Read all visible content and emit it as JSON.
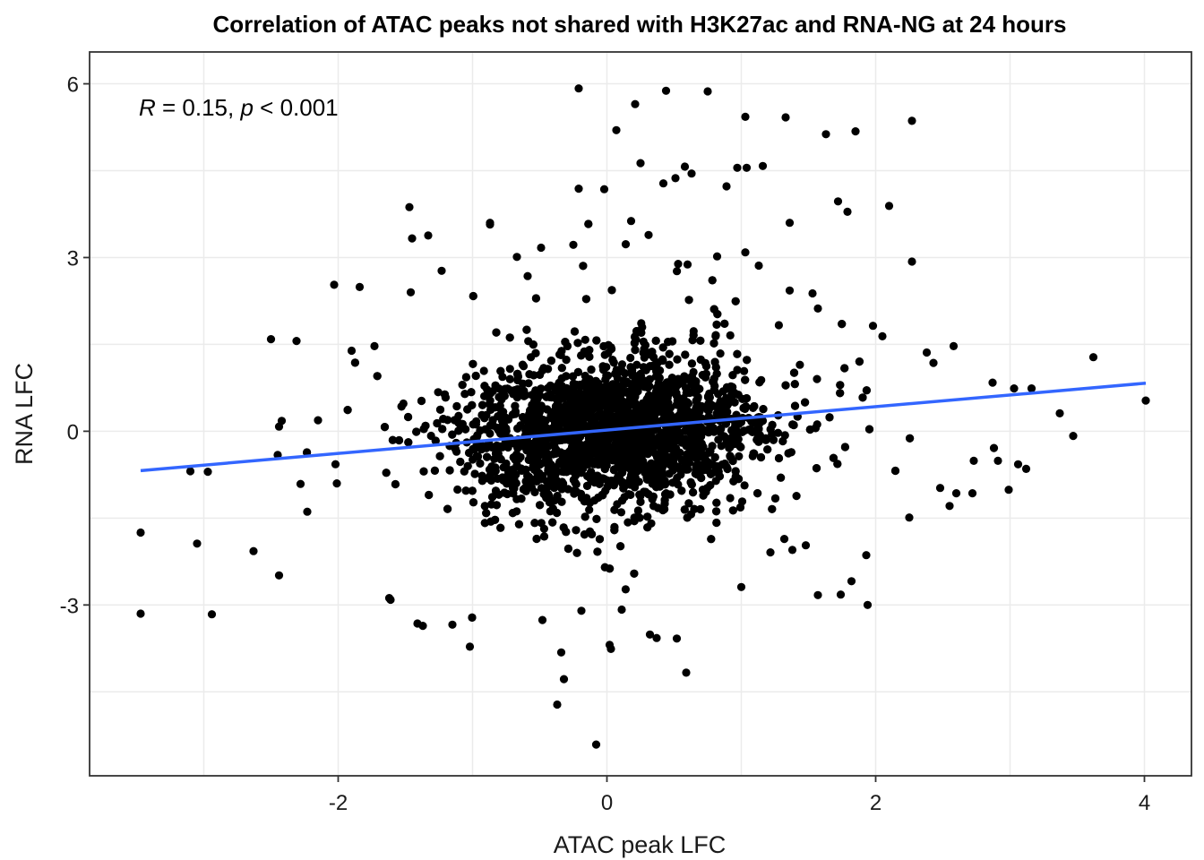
{
  "chart_data": {
    "type": "scatter",
    "title": "Correlation of ATAC peaks not shared with H3K27ac and RNA-NG at 24 hours",
    "xlabel": "ATAC peak LFC",
    "ylabel": "RNA LFC",
    "xlim": [
      -3.85,
      4.35
    ],
    "ylim": [
      -5.95,
      6.55
    ],
    "x_ticks": [
      -2,
      0,
      2,
      4
    ],
    "x_tick_labels": [
      "-2",
      "0",
      "2",
      "4"
    ],
    "y_ticks": [
      -3,
      0,
      3,
      6
    ],
    "y_tick_labels": [
      "-3",
      "0",
      "3",
      "6"
    ],
    "grid": true,
    "annotation": {
      "r_symbol": "R",
      "r_text": " = 0.15, ",
      "p_symbol": "p",
      "p_text": " < 0.001"
    },
    "fit_line": {
      "color": "#3366ff",
      "x": [
        -3.47,
        4.01
      ],
      "y": [
        -0.68,
        0.83
      ]
    },
    "point_color": "#000000",
    "cloud": {
      "count": 3600,
      "x_center": 0.05,
      "x_sd": 0.52,
      "y_sd": 0.62,
      "slope": 0.2
    },
    "points": [
      [
        -0.21,
        5.92
      ],
      [
        0.44,
        5.88
      ],
      [
        0.75,
        5.87
      ],
      [
        0.21,
        5.65
      ],
      [
        1.03,
        5.43
      ],
      [
        1.33,
        5.42
      ],
      [
        2.27,
        5.36
      ],
      [
        0.07,
        5.2
      ],
      [
        1.85,
        5.18
      ],
      [
        1.63,
        5.13
      ],
      [
        0.25,
        4.63
      ],
      [
        0.58,
        4.57
      ],
      [
        0.97,
        4.55
      ],
      [
        1.04,
        4.55
      ],
      [
        1.16,
        4.58
      ],
      [
        0.42,
        4.28
      ],
      [
        0.63,
        4.45
      ],
      [
        0.51,
        4.37
      ],
      [
        1.72,
        3.97
      ],
      [
        1.79,
        3.79
      ],
      [
        2.1,
        3.89
      ],
      [
        -1.47,
        3.87
      ],
      [
        -0.21,
        4.19
      ],
      [
        -0.02,
        4.18
      ],
      [
        0.89,
        4.23
      ],
      [
        -0.87,
        3.57
      ],
      [
        -1.45,
        3.33
      ],
      [
        -1.33,
        3.38
      ],
      [
        -0.87,
        3.6
      ],
      [
        1.36,
        3.6
      ],
      [
        2.27,
        2.93
      ],
      [
        -1.23,
        2.77
      ],
      [
        -2.03,
        2.53
      ],
      [
        -1.84,
        2.49
      ],
      [
        -1.46,
        2.4
      ],
      [
        -2.5,
        1.59
      ],
      [
        -2.31,
        1.56
      ],
      [
        -1.73,
        1.47
      ],
      [
        -1.9,
        1.39
      ],
      [
        3.62,
        1.28
      ],
      [
        4.01,
        0.53
      ],
      [
        3.37,
        0.31
      ],
      [
        3.47,
        -0.08
      ],
      [
        3.16,
        0.74
      ],
      [
        3.03,
        0.74
      ],
      [
        2.87,
        0.84
      ],
      [
        -2.42,
        0.18
      ],
      [
        -2.15,
        0.19
      ],
      [
        -2.44,
        0.08
      ],
      [
        -2.45,
        -0.41
      ],
      [
        -2.28,
        -0.91
      ],
      [
        -2.23,
        -1.39
      ],
      [
        -2.02,
        -0.57
      ],
      [
        -2.97,
        -0.7
      ],
      [
        -3.1,
        -0.69
      ],
      [
        -2.01,
        -0.9
      ],
      [
        -3.47,
        -1.75
      ],
      [
        -3.47,
        -3.15
      ],
      [
        -3.05,
        -1.94
      ],
      [
        -2.94,
        -3.16
      ],
      [
        -2.63,
        -2.07
      ],
      [
        -2.44,
        -2.49
      ],
      [
        -1.62,
        -2.88
      ],
      [
        -1.61,
        -2.91
      ],
      [
        -1.41,
        -3.32
      ],
      [
        -1.37,
        -3.36
      ],
      [
        -1.15,
        -3.34
      ],
      [
        -1.02,
        -3.72
      ],
      [
        -0.34,
        -3.82
      ],
      [
        -0.32,
        -4.28
      ],
      [
        -0.37,
        -4.72
      ],
      [
        -0.08,
        -5.41
      ],
      [
        0.02,
        -3.69
      ],
      [
        0.03,
        -3.76
      ],
      [
        0.59,
        -4.17
      ],
      [
        0.37,
        -3.57
      ],
      [
        0.32,
        -3.51
      ],
      [
        0.52,
        -3.58
      ],
      [
        -0.48,
        -3.26
      ],
      [
        -0.19,
        -3.1
      ],
      [
        0.11,
        -3.08
      ],
      [
        1.74,
        -2.82
      ],
      [
        1.94,
        -3.0
      ],
      [
        1.57,
        -2.83
      ],
      [
        1.82,
        -2.59
      ],
      [
        1.93,
        -2.14
      ],
      [
        1.38,
        -2.05
      ],
      [
        1.48,
        -1.97
      ],
      [
        1.32,
        -1.86
      ],
      [
        1.0,
        -2.69
      ],
      [
        2.72,
        -1.07
      ],
      [
        2.99,
        -1.01
      ],
      [
        2.91,
        -0.51
      ],
      [
        2.88,
        -0.29
      ],
      [
        3.12,
        -0.65
      ],
      [
        2.55,
        -1.29
      ],
      [
        2.6,
        -1.07
      ],
      [
        2.25,
        -1.49
      ],
      [
        2.48,
        -0.98
      ],
      [
        2.73,
        -0.51
      ],
      [
        2.05,
        1.64
      ],
      [
        1.98,
        1.82
      ],
      [
        2.58,
        1.47
      ],
      [
        2.43,
        1.18
      ],
      [
        2.38,
        1.36
      ],
      [
        0.82,
        3.02
      ],
      [
        0.53,
        2.89
      ],
      [
        0.6,
        2.88
      ],
      [
        -0.67,
        3.01
      ],
      [
        -0.49,
        3.17
      ],
      [
        -0.59,
        2.68
      ],
      [
        -0.25,
        3.22
      ],
      [
        0.14,
        3.23
      ],
      [
        0.31,
        3.39
      ],
      [
        0.18,
        3.63
      ],
      [
        1.03,
        3.09
      ],
      [
        1.13,
        2.86
      ],
      [
        1.36,
        2.43
      ],
      [
        1.53,
        2.38
      ],
      [
        1.57,
        2.12
      ]
    ]
  }
}
